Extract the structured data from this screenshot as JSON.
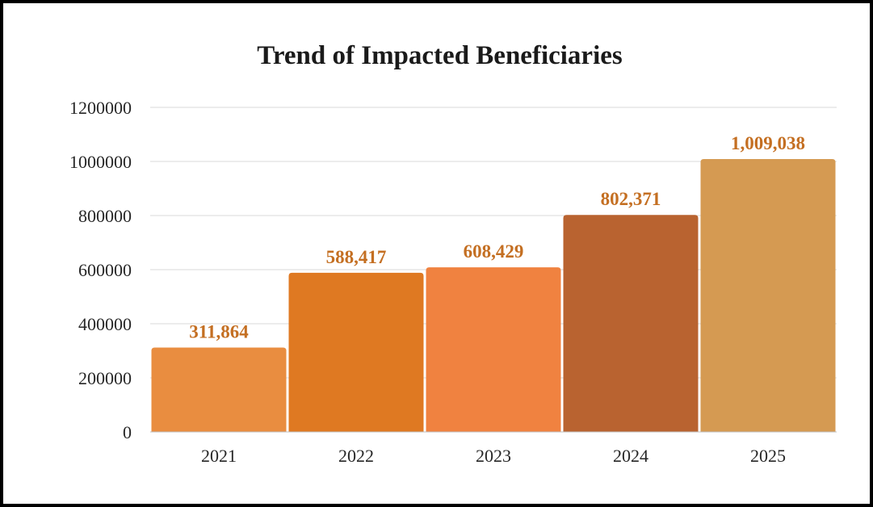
{
  "chart_data": {
    "type": "bar",
    "title": "Trend of Impacted Beneficiaries",
    "categories": [
      "2021",
      "2022",
      "2023",
      "2024",
      "2025"
    ],
    "values": [
      311864,
      588417,
      608429,
      802371,
      1009038
    ],
    "data_labels": [
      "311,864",
      "588,417",
      "608,429",
      "802,371",
      "1,009,038"
    ],
    "xlabel": "",
    "ylabel": "",
    "ylim": [
      0,
      1200000
    ],
    "yticks": [
      0,
      200000,
      400000,
      600000,
      800000,
      1000000,
      1200000
    ],
    "ytick_labels": [
      "0",
      "200000",
      "400000",
      "600000",
      "800000",
      "1000000",
      "1200000"
    ],
    "grid": true,
    "legend": "none",
    "colors": {
      "bars": [
        "#E98D40",
        "#DF7922",
        "#F08240",
        "#B96330",
        "#D59A52"
      ],
      "data_label": "#C46F22",
      "gridline": "#D9D9D9",
      "axis": "#BFBFBF"
    }
  }
}
